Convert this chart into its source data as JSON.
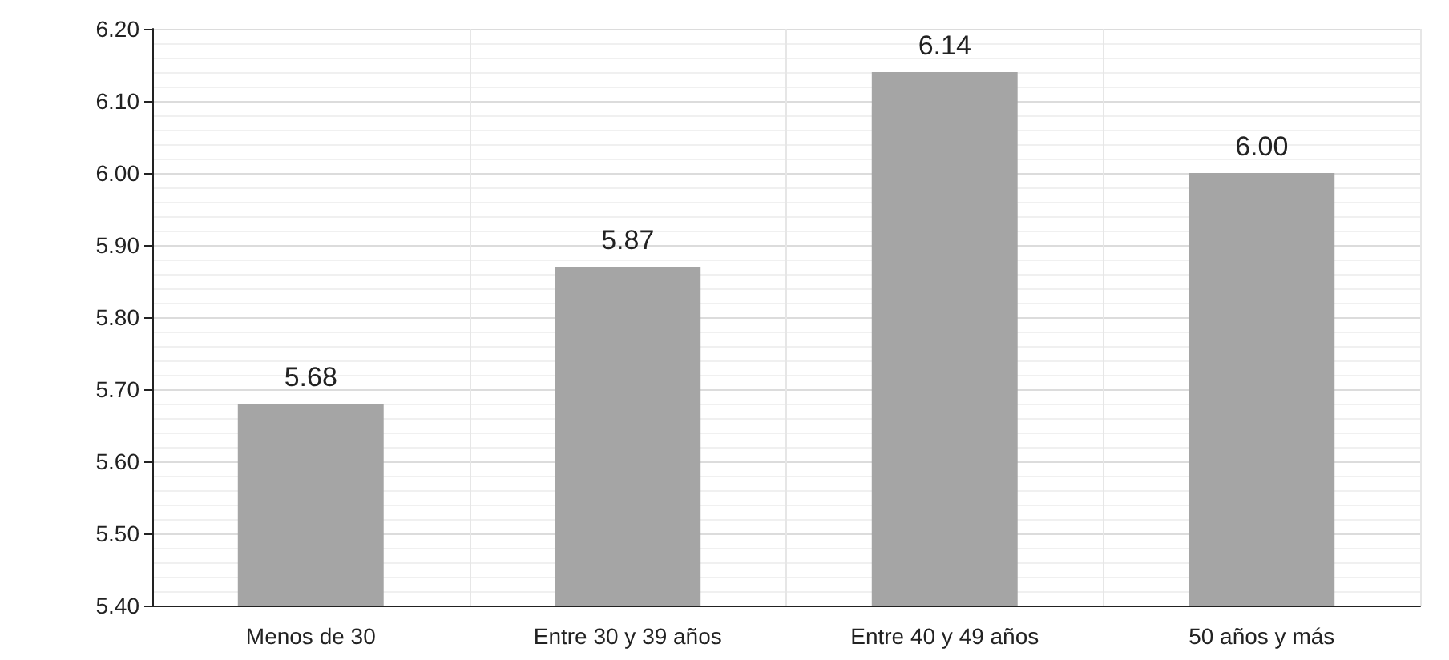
{
  "chart_data": {
    "type": "bar",
    "categories": [
      "Menos de 30",
      "Entre 30 y 39 años",
      "Entre 40 y 49 años",
      "50 años y más"
    ],
    "values": [
      5.68,
      5.87,
      6.14,
      6.0
    ],
    "color": "#a5a5a5",
    "value_labels": [
      "5.68",
      "5.87",
      "6.14",
      "6.00"
    ],
    "ylim": [
      5.4,
      6.2
    ],
    "yticks": [
      {
        "value": 5.4,
        "label": "5.40"
      },
      {
        "value": 5.5,
        "label": "5.50"
      },
      {
        "value": 5.6,
        "label": "5.60"
      },
      {
        "value": 5.7,
        "label": "5.70"
      },
      {
        "value": 5.8,
        "label": "5.80"
      },
      {
        "value": 5.9,
        "label": "5.90"
      },
      {
        "value": 6.0,
        "label": "6.00"
      },
      {
        "value": 6.1,
        "label": "6.10"
      },
      {
        "value": 6.2,
        "label": "6.20"
      }
    ],
    "grid": true
  }
}
